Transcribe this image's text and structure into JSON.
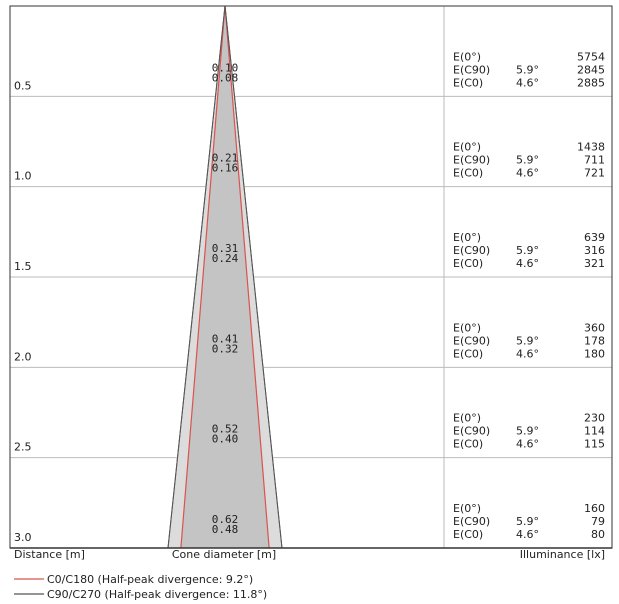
{
  "chart_data": {
    "type": "cone-diagram",
    "distance_unit_label": "Distance [m]",
    "cone_label": "Cone diameter [m]",
    "illuminance_label": "Illuminance [lx]",
    "rows": [
      {
        "distance": "0.5",
        "d_c0": "0.10",
        "d_c90": "0.08",
        "e0_label": "E(0°)",
        "e0": "5754",
        "ec90_label": "E(C90)",
        "ec90_angle": "5.9°",
        "ec90": "2845",
        "ec0_label": "E(C0)",
        "ec0_angle": "4.6°",
        "ec0": "2885"
      },
      {
        "distance": "1.0",
        "d_c0": "0.21",
        "d_c90": "0.16",
        "e0_label": "E(0°)",
        "e0": "1438",
        "ec90_label": "E(C90)",
        "ec90_angle": "5.9°",
        "ec90": "711",
        "ec0_label": "E(C0)",
        "ec0_angle": "4.6°",
        "ec0": "721"
      },
      {
        "distance": "1.5",
        "d_c0": "0.31",
        "d_c90": "0.24",
        "e0_label": "E(0°)",
        "e0": "639",
        "ec90_label": "E(C90)",
        "ec90_angle": "5.9°",
        "ec90": "316",
        "ec0_label": "E(C0)",
        "ec0_angle": "4.6°",
        "ec0": "321"
      },
      {
        "distance": "2.0",
        "d_c0": "0.41",
        "d_c90": "0.32",
        "e0_label": "E(0°)",
        "e0": "360",
        "ec90_label": "E(C90)",
        "ec90_angle": "5.9°",
        "ec90": "178",
        "ec0_label": "E(C0)",
        "ec0_angle": "4.6°",
        "ec0": "180"
      },
      {
        "distance": "2.5",
        "d_c0": "0.52",
        "d_c90": "0.40",
        "e0_label": "E(0°)",
        "e0": "230",
        "ec90_label": "E(C90)",
        "ec90_angle": "5.9°",
        "ec90": "114",
        "ec0_label": "E(C0)",
        "ec0_angle": "4.6°",
        "ec0": "115"
      },
      {
        "distance": "3.0",
        "d_c0": "0.62",
        "d_c90": "0.48",
        "e0_label": "E(0°)",
        "e0": "160",
        "ec90_label": "E(C90)",
        "ec90_angle": "5.9°",
        "ec90": "79",
        "ec0_label": "E(C0)",
        "ec0_angle": "4.6°",
        "ec0": "80"
      }
    ],
    "legend": [
      {
        "label": "C0/C180 (Half-peak divergence: 9.2°)",
        "color": "#d9534f"
      },
      {
        "label": "C90/C270 (Half-peak divergence: 11.8°)",
        "color": "#555555"
      }
    ],
    "colors": {
      "cone_fill": "#c4c4c4",
      "outer_cone_fill": "#dcdcdc",
      "red_line": "#d9534f",
      "grid": "#bbbbbb",
      "frame": "#333333"
    }
  }
}
